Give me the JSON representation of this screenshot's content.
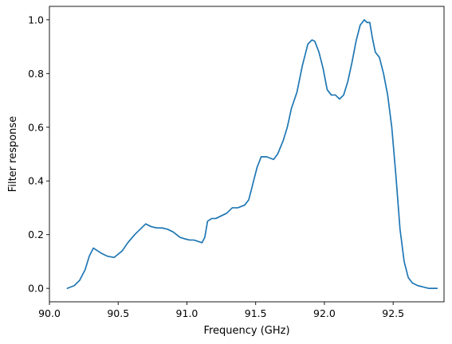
{
  "chart_data": {
    "type": "line",
    "title": "",
    "xlabel": "Frequency (GHz)",
    "ylabel": "Filter response",
    "xlim": [
      90.0,
      92.87
    ],
    "ylim": [
      -0.05,
      1.05
    ],
    "xticks": [
      90.0,
      90.5,
      91.0,
      91.5,
      92.0,
      92.5
    ],
    "xtick_labels": [
      "90.0",
      "90.5",
      "91.0",
      "91.5",
      "92.0",
      "92.5"
    ],
    "yticks": [
      0.0,
      0.2,
      0.4,
      0.6,
      0.8,
      1.0
    ],
    "ytick_labels": [
      "0.0",
      "0.2",
      "0.4",
      "0.6",
      "0.8",
      "1.0"
    ],
    "grid": false,
    "legend": "none",
    "line_color": "#1f77b4",
    "series": [
      {
        "x": [
          90.13,
          90.18,
          90.22,
          90.26,
          90.29,
          90.32,
          90.35,
          90.38,
          90.42,
          90.47,
          90.53,
          90.57,
          90.62,
          90.66,
          90.7,
          90.74,
          90.78,
          90.82,
          90.86,
          90.9,
          90.95,
          90.98,
          91.02,
          91.05,
          91.08,
          91.11,
          91.13,
          91.15,
          91.18,
          91.21,
          91.25,
          91.29,
          91.33,
          91.37,
          91.42,
          91.45,
          91.48,
          91.51,
          91.54,
          91.58,
          91.63,
          91.66,
          91.7,
          91.73,
          91.76,
          91.8,
          91.84,
          91.88,
          91.91,
          91.93,
          91.96,
          91.99,
          92.02,
          92.05,
          92.08,
          92.11,
          92.14,
          92.17,
          92.2,
          92.23,
          92.26,
          92.29,
          92.31,
          92.33,
          92.35,
          92.37,
          92.4,
          92.43,
          92.46,
          92.49,
          92.52,
          92.55,
          92.58,
          92.61,
          92.64,
          92.68,
          92.72,
          92.76,
          92.82
        ],
        "y": [
          0.0,
          0.01,
          0.03,
          0.07,
          0.12,
          0.15,
          0.14,
          0.13,
          0.12,
          0.115,
          0.14,
          0.17,
          0.2,
          0.22,
          0.24,
          0.23,
          0.225,
          0.225,
          0.22,
          0.21,
          0.19,
          0.185,
          0.18,
          0.18,
          0.175,
          0.17,
          0.19,
          0.25,
          0.26,
          0.26,
          0.27,
          0.28,
          0.3,
          0.3,
          0.31,
          0.33,
          0.39,
          0.45,
          0.49,
          0.49,
          0.48,
          0.5,
          0.55,
          0.6,
          0.67,
          0.73,
          0.83,
          0.91,
          0.925,
          0.92,
          0.88,
          0.82,
          0.74,
          0.72,
          0.72,
          0.705,
          0.72,
          0.77,
          0.84,
          0.92,
          0.98,
          1.0,
          0.99,
          0.99,
          0.93,
          0.88,
          0.86,
          0.8,
          0.72,
          0.6,
          0.42,
          0.22,
          0.1,
          0.04,
          0.02,
          0.01,
          0.005,
          0.0,
          0.0
        ]
      }
    ]
  }
}
